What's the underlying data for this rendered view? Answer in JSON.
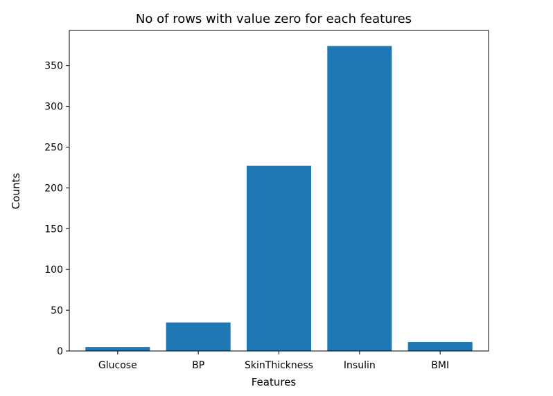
{
  "chart_data": {
    "type": "bar",
    "title": "No of rows with value zero for each features",
    "xlabel": "Features",
    "ylabel": "Counts",
    "categories": [
      "Glucose",
      "BP",
      "SkinThickness",
      "Insulin",
      "BMI"
    ],
    "values": [
      5,
      35,
      227,
      374,
      11
    ],
    "ylim": [
      0,
      393
    ],
    "yticks": [
      0,
      50,
      100,
      150,
      200,
      250,
      300,
      350
    ],
    "grid": false,
    "bar_color": "#1f77b4"
  }
}
